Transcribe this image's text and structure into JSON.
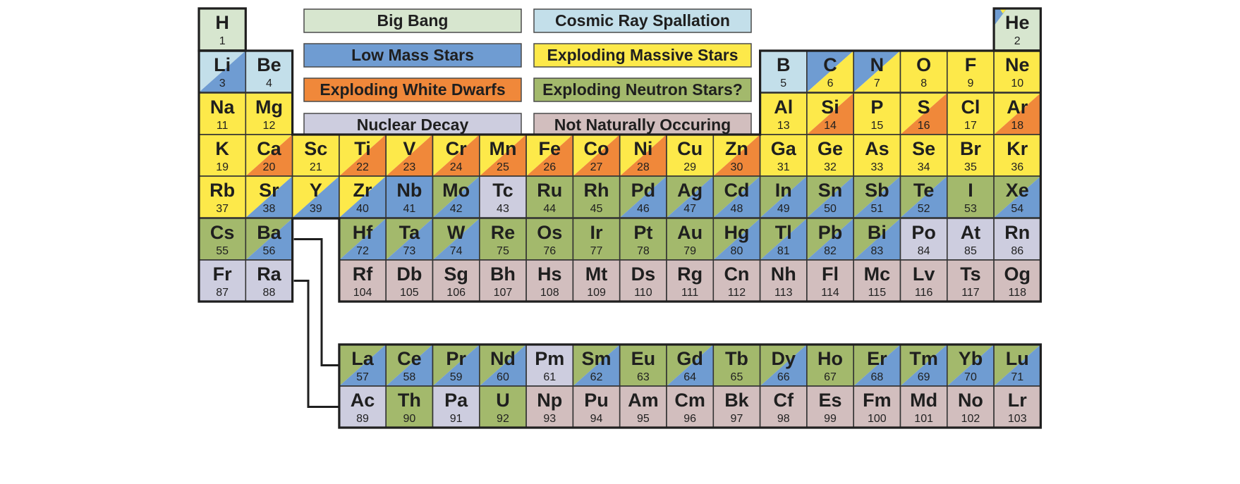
{
  "colors": {
    "big_bang": "#d7e6cf",
    "cosmic_ray": "#c3dfea",
    "low_mass": "#6f9cd2",
    "massive": "#fde94a",
    "white_dwarf": "#f0883a",
    "neutron": "#a3b96c",
    "decay": "#cdcddf",
    "unnatural": "#d2bebe"
  },
  "legend": [
    {
      "key": "big_bang",
      "label": "Big Bang"
    },
    {
      "key": "cosmic_ray",
      "label": "Cosmic Ray Spallation"
    },
    {
      "key": "low_mass",
      "label": "Low Mass Stars"
    },
    {
      "key": "massive",
      "label": "Exploding Massive Stars"
    },
    {
      "key": "white_dwarf",
      "label": "Exploding White Dwarfs"
    },
    {
      "key": "neutron",
      "label": "Exploding Neutron Stars?"
    },
    {
      "key": "decay",
      "label": "Nuclear Decay"
    },
    {
      "key": "unnatural",
      "label": "Not Naturally Occuring"
    }
  ],
  "elements": [
    {
      "sym": "H",
      "num": "1",
      "col": 1,
      "row": 1,
      "c": [
        "big_bang"
      ]
    },
    {
      "sym": "He",
      "num": "2",
      "col": 18,
      "row": 1,
      "c": [
        "big_bang",
        "low_mass",
        "massive"
      ]
    },
    {
      "sym": "Li",
      "num": "3",
      "col": 1,
      "row": 2,
      "c": [
        "cosmic_ray",
        "low_mass"
      ]
    },
    {
      "sym": "Be",
      "num": "4",
      "col": 2,
      "row": 2,
      "c": [
        "cosmic_ray"
      ]
    },
    {
      "sym": "B",
      "num": "5",
      "col": 13,
      "row": 2,
      "c": [
        "cosmic_ray"
      ]
    },
    {
      "sym": "C",
      "num": "6",
      "col": 14,
      "row": 2,
      "c": [
        "low_mass",
        "massive"
      ]
    },
    {
      "sym": "N",
      "num": "7",
      "col": 15,
      "row": 2,
      "c": [
        "low_mass",
        "massive"
      ]
    },
    {
      "sym": "O",
      "num": "8",
      "col": 16,
      "row": 2,
      "c": [
        "massive"
      ]
    },
    {
      "sym": "F",
      "num": "9",
      "col": 17,
      "row": 2,
      "c": [
        "massive"
      ]
    },
    {
      "sym": "Ne",
      "num": "10",
      "col": 18,
      "row": 2,
      "c": [
        "massive"
      ]
    },
    {
      "sym": "Na",
      "num": "11",
      "col": 1,
      "row": 3,
      "c": [
        "massive"
      ]
    },
    {
      "sym": "Mg",
      "num": "12",
      "col": 2,
      "row": 3,
      "c": [
        "massive"
      ]
    },
    {
      "sym": "Al",
      "num": "13",
      "col": 13,
      "row": 3,
      "c": [
        "massive"
      ]
    },
    {
      "sym": "Si",
      "num": "14",
      "col": 14,
      "row": 3,
      "c": [
        "massive",
        "white_dwarf"
      ]
    },
    {
      "sym": "P",
      "num": "15",
      "col": 15,
      "row": 3,
      "c": [
        "massive"
      ]
    },
    {
      "sym": "S",
      "num": "16",
      "col": 16,
      "row": 3,
      "c": [
        "massive",
        "white_dwarf"
      ]
    },
    {
      "sym": "Cl",
      "num": "17",
      "col": 17,
      "row": 3,
      "c": [
        "massive"
      ]
    },
    {
      "sym": "Ar",
      "num": "18",
      "col": 18,
      "row": 3,
      "c": [
        "massive",
        "white_dwarf"
      ]
    },
    {
      "sym": "K",
      "num": "19",
      "col": 1,
      "row": 4,
      "c": [
        "massive"
      ]
    },
    {
      "sym": "Ca",
      "num": "20",
      "col": 2,
      "row": 4,
      "c": [
        "massive",
        "white_dwarf"
      ]
    },
    {
      "sym": "Sc",
      "num": "21",
      "col": 3,
      "row": 4,
      "c": [
        "massive"
      ]
    },
    {
      "sym": "Ti",
      "num": "22",
      "col": 4,
      "row": 4,
      "c": [
        "massive",
        "white_dwarf"
      ]
    },
    {
      "sym": "V",
      "num": "23",
      "col": 5,
      "row": 4,
      "c": [
        "massive",
        "white_dwarf"
      ]
    },
    {
      "sym": "Cr",
      "num": "24",
      "col": 6,
      "row": 4,
      "c": [
        "massive",
        "white_dwarf"
      ]
    },
    {
      "sym": "Mn",
      "num": "25",
      "col": 7,
      "row": 4,
      "c": [
        "massive",
        "white_dwarf"
      ]
    },
    {
      "sym": "Fe",
      "num": "26",
      "col": 8,
      "row": 4,
      "c": [
        "massive",
        "white_dwarf"
      ]
    },
    {
      "sym": "Co",
      "num": "27",
      "col": 9,
      "row": 4,
      "c": [
        "massive",
        "white_dwarf"
      ]
    },
    {
      "sym": "Ni",
      "num": "28",
      "col": 10,
      "row": 4,
      "c": [
        "massive",
        "white_dwarf"
      ]
    },
    {
      "sym": "Cu",
      "num": "29",
      "col": 11,
      "row": 4,
      "c": [
        "massive"
      ]
    },
    {
      "sym": "Zn",
      "num": "30",
      "col": 12,
      "row": 4,
      "c": [
        "massive",
        "white_dwarf"
      ]
    },
    {
      "sym": "Ga",
      "num": "31",
      "col": 13,
      "row": 4,
      "c": [
        "massive"
      ]
    },
    {
      "sym": "Ge",
      "num": "32",
      "col": 14,
      "row": 4,
      "c": [
        "massive"
      ]
    },
    {
      "sym": "As",
      "num": "33",
      "col": 15,
      "row": 4,
      "c": [
        "massive"
      ]
    },
    {
      "sym": "Se",
      "num": "34",
      "col": 16,
      "row": 4,
      "c": [
        "massive"
      ]
    },
    {
      "sym": "Br",
      "num": "35",
      "col": 17,
      "row": 4,
      "c": [
        "massive"
      ]
    },
    {
      "sym": "Kr",
      "num": "36",
      "col": 18,
      "row": 4,
      "c": [
        "massive"
      ]
    },
    {
      "sym": "Rb",
      "num": "37",
      "col": 1,
      "row": 5,
      "c": [
        "massive"
      ]
    },
    {
      "sym": "Sr",
      "num": "38",
      "col": 2,
      "row": 5,
      "c": [
        "massive",
        "low_mass"
      ]
    },
    {
      "sym": "Y",
      "num": "39",
      "col": 3,
      "row": 5,
      "c": [
        "massive",
        "low_mass"
      ]
    },
    {
      "sym": "Zr",
      "num": "40",
      "col": 4,
      "row": 5,
      "c": [
        "massive",
        "low_mass"
      ]
    },
    {
      "sym": "Nb",
      "num": "41",
      "col": 5,
      "row": 5,
      "c": [
        "low_mass"
      ]
    },
    {
      "sym": "Mo",
      "num": "42",
      "col": 6,
      "row": 5,
      "c": [
        "neutron",
        "low_mass"
      ]
    },
    {
      "sym": "Tc",
      "num": "43",
      "col": 7,
      "row": 5,
      "c": [
        "decay"
      ]
    },
    {
      "sym": "Ru",
      "num": "44",
      "col": 8,
      "row": 5,
      "c": [
        "neutron"
      ]
    },
    {
      "sym": "Rh",
      "num": "45",
      "col": 9,
      "row": 5,
      "c": [
        "neutron"
      ]
    },
    {
      "sym": "Pd",
      "num": "46",
      "col": 10,
      "row": 5,
      "c": [
        "neutron",
        "low_mass"
      ]
    },
    {
      "sym": "Ag",
      "num": "47",
      "col": 11,
      "row": 5,
      "c": [
        "neutron",
        "low_mass"
      ]
    },
    {
      "sym": "Cd",
      "num": "48",
      "col": 12,
      "row": 5,
      "c": [
        "neutron",
        "low_mass"
      ]
    },
    {
      "sym": "In",
      "num": "49",
      "col": 13,
      "row": 5,
      "c": [
        "neutron",
        "low_mass"
      ]
    },
    {
      "sym": "Sn",
      "num": "50",
      "col": 14,
      "row": 5,
      "c": [
        "neutron",
        "low_mass"
      ]
    },
    {
      "sym": "Sb",
      "num": "51",
      "col": 15,
      "row": 5,
      "c": [
        "neutron",
        "low_mass"
      ]
    },
    {
      "sym": "Te",
      "num": "52",
      "col": 16,
      "row": 5,
      "c": [
        "neutron",
        "low_mass"
      ]
    },
    {
      "sym": "I",
      "num": "53",
      "col": 17,
      "row": 5,
      "c": [
        "neutron"
      ]
    },
    {
      "sym": "Xe",
      "num": "54",
      "col": 18,
      "row": 5,
      "c": [
        "neutron",
        "low_mass"
      ]
    },
    {
      "sym": "Cs",
      "num": "55",
      "col": 1,
      "row": 6,
      "c": [
        "neutron"
      ]
    },
    {
      "sym": "Ba",
      "num": "56",
      "col": 2,
      "row": 6,
      "c": [
        "neutron",
        "low_mass"
      ]
    },
    {
      "sym": "Hf",
      "num": "72",
      "col": 4,
      "row": 6,
      "c": [
        "neutron",
        "low_mass"
      ]
    },
    {
      "sym": "Ta",
      "num": "73",
      "col": 5,
      "row": 6,
      "c": [
        "neutron",
        "low_mass"
      ]
    },
    {
      "sym": "W",
      "num": "74",
      "col": 6,
      "row": 6,
      "c": [
        "neutron",
        "low_mass"
      ]
    },
    {
      "sym": "Re",
      "num": "75",
      "col": 7,
      "row": 6,
      "c": [
        "neutron"
      ]
    },
    {
      "sym": "Os",
      "num": "76",
      "col": 8,
      "row": 6,
      "c": [
        "neutron"
      ]
    },
    {
      "sym": "Ir",
      "num": "77",
      "col": 9,
      "row": 6,
      "c": [
        "neutron"
      ]
    },
    {
      "sym": "Pt",
      "num": "78",
      "col": 10,
      "row": 6,
      "c": [
        "neutron"
      ]
    },
    {
      "sym": "Au",
      "num": "79",
      "col": 11,
      "row": 6,
      "c": [
        "neutron"
      ]
    },
    {
      "sym": "Hg",
      "num": "80",
      "col": 12,
      "row": 6,
      "c": [
        "neutron",
        "low_mass"
      ]
    },
    {
      "sym": "Tl",
      "num": "81",
      "col": 13,
      "row": 6,
      "c": [
        "neutron",
        "low_mass"
      ]
    },
    {
      "sym": "Pb",
      "num": "82",
      "col": 14,
      "row": 6,
      "c": [
        "neutron",
        "low_mass"
      ]
    },
    {
      "sym": "Bi",
      "num": "83",
      "col": 15,
      "row": 6,
      "c": [
        "neutron",
        "low_mass"
      ]
    },
    {
      "sym": "Po",
      "num": "84",
      "col": 16,
      "row": 6,
      "c": [
        "decay"
      ]
    },
    {
      "sym": "At",
      "num": "85",
      "col": 17,
      "row": 6,
      "c": [
        "decay"
      ]
    },
    {
      "sym": "Rn",
      "num": "86",
      "col": 18,
      "row": 6,
      "c": [
        "decay"
      ]
    },
    {
      "sym": "Fr",
      "num": "87",
      "col": 1,
      "row": 7,
      "c": [
        "decay"
      ]
    },
    {
      "sym": "Ra",
      "num": "88",
      "col": 2,
      "row": 7,
      "c": [
        "decay"
      ]
    },
    {
      "sym": "Rf",
      "num": "104",
      "col": 4,
      "row": 7,
      "c": [
        "unnatural"
      ]
    },
    {
      "sym": "Db",
      "num": "105",
      "col": 5,
      "row": 7,
      "c": [
        "unnatural"
      ]
    },
    {
      "sym": "Sg",
      "num": "106",
      "col": 6,
      "row": 7,
      "c": [
        "unnatural"
      ]
    },
    {
      "sym": "Bh",
      "num": "107",
      "col": 7,
      "row": 7,
      "c": [
        "unnatural"
      ]
    },
    {
      "sym": "Hs",
      "num": "108",
      "col": 8,
      "row": 7,
      "c": [
        "unnatural"
      ]
    },
    {
      "sym": "Mt",
      "num": "109",
      "col": 9,
      "row": 7,
      "c": [
        "unnatural"
      ]
    },
    {
      "sym": "Ds",
      "num": "110",
      "col": 10,
      "row": 7,
      "c": [
        "unnatural"
      ]
    },
    {
      "sym": "Rg",
      "num": "111",
      "col": 11,
      "row": 7,
      "c": [
        "unnatural"
      ]
    },
    {
      "sym": "Cn",
      "num": "112",
      "col": 12,
      "row": 7,
      "c": [
        "unnatural"
      ]
    },
    {
      "sym": "Nh",
      "num": "113",
      "col": 13,
      "row": 7,
      "c": [
        "unnatural"
      ]
    },
    {
      "sym": "Fl",
      "num": "114",
      "col": 14,
      "row": 7,
      "c": [
        "unnatural"
      ]
    },
    {
      "sym": "Mc",
      "num": "115",
      "col": 15,
      "row": 7,
      "c": [
        "unnatural"
      ]
    },
    {
      "sym": "Lv",
      "num": "116",
      "col": 16,
      "row": 7,
      "c": [
        "unnatural"
      ]
    },
    {
      "sym": "Ts",
      "num": "117",
      "col": 17,
      "row": 7,
      "c": [
        "unnatural"
      ]
    },
    {
      "sym": "Og",
      "num": "118",
      "col": 18,
      "row": 7,
      "c": [
        "unnatural"
      ]
    },
    {
      "sym": "La",
      "num": "57",
      "col": 4,
      "row": 9,
      "c": [
        "neutron",
        "low_mass"
      ]
    },
    {
      "sym": "Ce",
      "num": "58",
      "col": 5,
      "row": 9,
      "c": [
        "neutron",
        "low_mass"
      ]
    },
    {
      "sym": "Pr",
      "num": "59",
      "col": 6,
      "row": 9,
      "c": [
        "neutron",
        "low_mass"
      ]
    },
    {
      "sym": "Nd",
      "num": "60",
      "col": 7,
      "row": 9,
      "c": [
        "neutron",
        "low_mass"
      ]
    },
    {
      "sym": "Pm",
      "num": "61",
      "col": 8,
      "row": 9,
      "c": [
        "decay"
      ]
    },
    {
      "sym": "Sm",
      "num": "62",
      "col": 9,
      "row": 9,
      "c": [
        "neutron",
        "low_mass"
      ]
    },
    {
      "sym": "Eu",
      "num": "63",
      "col": 10,
      "row": 9,
      "c": [
        "neutron"
      ]
    },
    {
      "sym": "Gd",
      "num": "64",
      "col": 11,
      "row": 9,
      "c": [
        "neutron",
        "low_mass"
      ]
    },
    {
      "sym": "Tb",
      "num": "65",
      "col": 12,
      "row": 9,
      "c": [
        "neutron"
      ]
    },
    {
      "sym": "Dy",
      "num": "66",
      "col": 13,
      "row": 9,
      "c": [
        "neutron",
        "low_mass"
      ]
    },
    {
      "sym": "Ho",
      "num": "67",
      "col": 14,
      "row": 9,
      "c": [
        "neutron"
      ]
    },
    {
      "sym": "Er",
      "num": "68",
      "col": 15,
      "row": 9,
      "c": [
        "neutron",
        "low_mass"
      ]
    },
    {
      "sym": "Tm",
      "num": "69",
      "col": 16,
      "row": 9,
      "c": [
        "neutron",
        "low_mass"
      ]
    },
    {
      "sym": "Yb",
      "num": "70",
      "col": 17,
      "row": 9,
      "c": [
        "neutron",
        "low_mass"
      ]
    },
    {
      "sym": "Lu",
      "num": "71",
      "col": 18,
      "row": 9,
      "c": [
        "neutron",
        "low_mass"
      ]
    },
    {
      "sym": "Ac",
      "num": "89",
      "col": 4,
      "row": 10,
      "c": [
        "decay"
      ]
    },
    {
      "sym": "Th",
      "num": "90",
      "col": 5,
      "row": 10,
      "c": [
        "neutron"
      ]
    },
    {
      "sym": "Pa",
      "num": "91",
      "col": 6,
      "row": 10,
      "c": [
        "decay"
      ]
    },
    {
      "sym": "U",
      "num": "92",
      "col": 7,
      "row": 10,
      "c": [
        "neutron"
      ]
    },
    {
      "sym": "Np",
      "num": "93",
      "col": 8,
      "row": 10,
      "c": [
        "unnatural"
      ]
    },
    {
      "sym": "Pu",
      "num": "94",
      "col": 9,
      "row": 10,
      "c": [
        "unnatural"
      ]
    },
    {
      "sym": "Am",
      "num": "95",
      "col": 10,
      "row": 10,
      "c": [
        "unnatural"
      ]
    },
    {
      "sym": "Cm",
      "num": "96",
      "col": 11,
      "row": 10,
      "c": [
        "unnatural"
      ]
    },
    {
      "sym": "Bk",
      "num": "97",
      "col": 12,
      "row": 10,
      "c": [
        "unnatural"
      ]
    },
    {
      "sym": "Cf",
      "num": "98",
      "col": 13,
      "row": 10,
      "c": [
        "unnatural"
      ]
    },
    {
      "sym": "Es",
      "num": "99",
      "col": 14,
      "row": 10,
      "c": [
        "unnatural"
      ]
    },
    {
      "sym": "Fm",
      "num": "100",
      "col": 15,
      "row": 10,
      "c": [
        "unnatural"
      ]
    },
    {
      "sym": "Md",
      "num": "101",
      "col": 16,
      "row": 10,
      "c": [
        "unnatural"
      ]
    },
    {
      "sym": "No",
      "num": "102",
      "col": 17,
      "row": 10,
      "c": [
        "unnatural"
      ]
    },
    {
      "sym": "Lr",
      "num": "103",
      "col": 18,
      "row": 10,
      "c": [
        "unnatural"
      ]
    }
  ]
}
